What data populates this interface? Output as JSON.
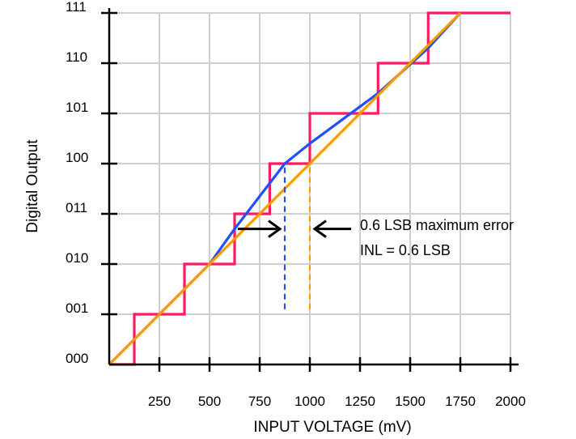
{
  "chart_data": {
    "type": "line",
    "xlabel": "INPUT VOLTAGE (mV)",
    "ylabel": "Digital Output",
    "xlim": [
      0,
      2000
    ],
    "ylim": [
      0,
      7
    ],
    "x_ticks": [
      250,
      500,
      750,
      1000,
      1250,
      1500,
      1750,
      2000
    ],
    "x_tick_labels": [
      "250",
      "500",
      "750",
      "1000",
      "1250",
      "1500",
      "1750",
      "2000"
    ],
    "y_ticks": [
      0,
      1,
      2,
      3,
      4,
      5,
      6,
      7
    ],
    "y_tick_labels": [
      "000",
      "001",
      "010",
      "011",
      "100",
      "101",
      "110",
      "111"
    ],
    "grid": true,
    "series": [
      {
        "color": "#ff1a66",
        "style": "step",
        "x": [
          0,
          125,
          125,
          375,
          375,
          625,
          625,
          800,
          800,
          1000,
          1000,
          1340,
          1340,
          1590,
          1590,
          2000
        ],
        "y": [
          0,
          0,
          1,
          1,
          2,
          2,
          3,
          3,
          4,
          4,
          5,
          5,
          6,
          6,
          7,
          7
        ]
      },
      {
        "color": "#1f4fff",
        "style": "line",
        "x": [
          0,
          125,
          500,
          625,
          875,
          1000,
          1340,
          1590,
          1750
        ],
        "y": [
          0,
          0.5,
          2.0,
          2.7,
          4.0,
          4.4,
          5.4,
          6.3,
          7
        ]
      },
      {
        "color": "#ff9900",
        "style": "line",
        "x": [
          0,
          1750
        ],
        "y": [
          0,
          7
        ]
      }
    ],
    "error_markers": [
      {
        "x": 875,
        "y_from": 1.1,
        "y_to": 4.0,
        "color": "#1f4fff"
      },
      {
        "x": 1000,
        "y_from": 1.1,
        "y_to": 4.0,
        "color": "#ff9900"
      }
    ],
    "annotation": {
      "lines": [
        "0.6 LSB maximum error",
        "INL = 0.6 LSB"
      ]
    }
  }
}
